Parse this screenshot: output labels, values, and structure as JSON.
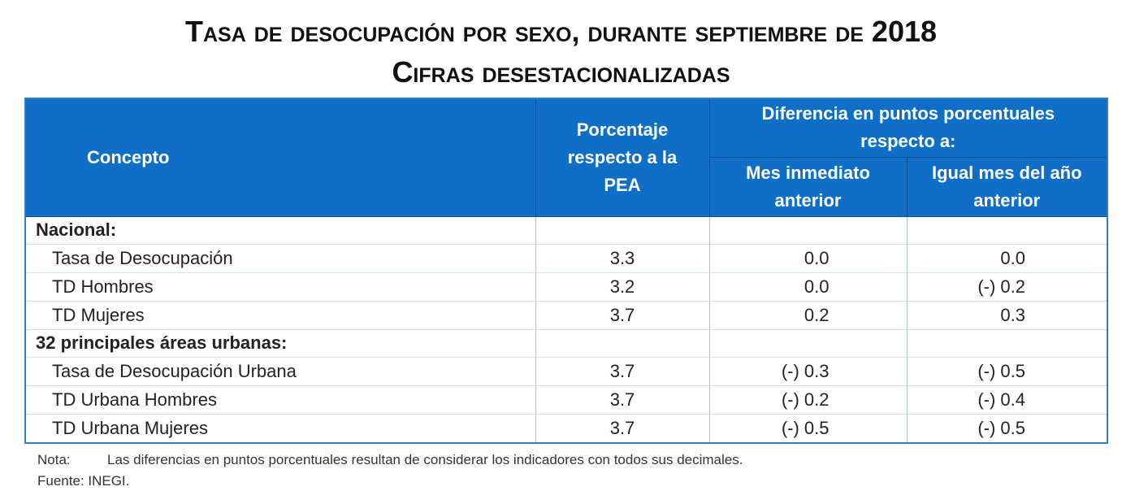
{
  "header": {
    "title": "Tasa de desocupación por sexo, durante septiembre de 2018",
    "subtitle": "Cifras desestacionalizadas"
  },
  "table": {
    "columns": {
      "concept": "Concepto",
      "pea": "Porcentaje respecto a la PEA",
      "diff": "Diferencia en puntos porcentuales respecto a:",
      "month": "Mes inmediato anterior",
      "year": "Igual mes del año anterior"
    },
    "rows": [
      {
        "label": "Nacional:"
      },
      {
        "label": "Tasa de Desocupación",
        "pea": "3.3",
        "month": "0.0",
        "year": "0.0"
      },
      {
        "label": "TD Hombres",
        "pea": "3.2",
        "month": "0.0",
        "year": "(-) 0.2"
      },
      {
        "label": "TD Mujeres",
        "pea": "3.7",
        "month": "0.2",
        "year": "0.3"
      },
      {
        "label": "32 principales áreas urbanas:"
      },
      {
        "label": "Tasa de Desocupación Urbana",
        "pea": "3.7",
        "month": "(-) 0.3",
        "year": "(-) 0.5"
      },
      {
        "label": "TD Urbana Hombres",
        "pea": "3.7",
        "month": "(-) 0.2",
        "year": "(-) 0.4"
      },
      {
        "label": "TD Urbana Mujeres",
        "pea": "3.7",
        "month": "(-) 0.5",
        "year": "(-) 0.5"
      }
    ]
  },
  "footer": {
    "note_label": "Nota:",
    "note": "Las diferencias en puntos porcentuales resultan de considerar los indicadores con todos sus decimales.",
    "source": "Fuente: INEGI."
  }
}
